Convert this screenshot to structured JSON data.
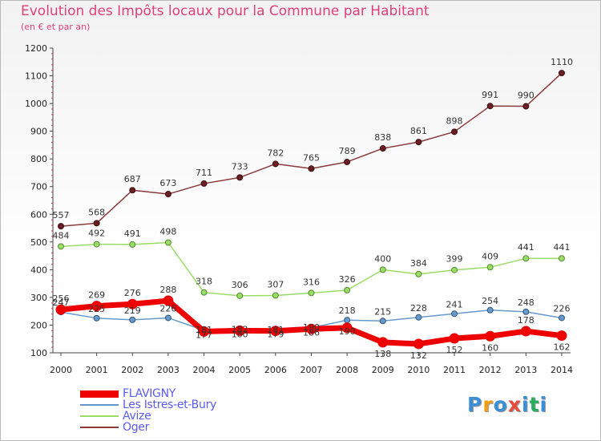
{
  "header": {
    "title": "Evolution des Impôts locaux pour la Commune par Habitant",
    "subtitle": "(en € et par an)"
  },
  "logo": {
    "text": "Proxiti",
    "letter_colors": [
      "#3a8fd6",
      "#f39c12",
      "#3a8fd6",
      "#e74c3c",
      "#3a8fd6",
      "#27ae60",
      "#3a8fd6"
    ]
  },
  "chart_data": {
    "type": "line",
    "title": "Evolution des Impôts locaux pour la Commune par Habitant",
    "subtitle": "(en € et par an)",
    "xlabel": "",
    "ylabel": "",
    "x": [
      2000,
      2001,
      2002,
      2003,
      2004,
      2005,
      2006,
      2007,
      2008,
      2009,
      2010,
      2011,
      2012,
      2013,
      2014
    ],
    "ylim": [
      100,
      1200
    ],
    "yticks": [
      100,
      200,
      300,
      400,
      500,
      600,
      700,
      800,
      900,
      1000,
      1100,
      1200
    ],
    "grid": false,
    "legend_position": "bottom-left",
    "series": [
      {
        "name": "FLAVIGNY",
        "color": "#ee0000",
        "values": [
          256,
          269,
          276,
          288,
          177,
          180,
          179,
          186,
          190,
          138,
          132,
          152,
          160,
          178,
          162
        ],
        "labels": [
          "256",
          "269",
          "276",
          "288",
          "177",
          "180",
          "179",
          "186",
          "190",
          "138",
          "132",
          "152",
          "160",
          "178",
          "162"
        ]
      },
      {
        "name": "Les Istres-et-Bury",
        "color": "#6699cc",
        "values": [
          247,
          225,
          219,
          226,
          181,
          182,
          181,
          190,
          218,
          215,
          228,
          241,
          254,
          248,
          226
        ],
        "labels": [
          "247",
          "225",
          "219",
          "226",
          "181",
          "182",
          "181",
          "190",
          "218",
          "215",
          "228",
          "241",
          "254",
          "248",
          "226"
        ]
      },
      {
        "name": "Avize",
        "color": "#99dd66",
        "values": [
          484,
          492,
          491,
          498,
          318,
          306,
          307,
          316,
          326,
          400,
          384,
          399,
          409,
          441,
          441
        ],
        "labels": [
          "484",
          "492",
          "491",
          "498",
          "318",
          "306",
          "307",
          "316",
          "326",
          "400",
          "384",
          "399",
          "409",
          "441",
          "441"
        ]
      },
      {
        "name": "Oger",
        "color": "#8b3a3a",
        "values": [
          557,
          568,
          687,
          673,
          711,
          733,
          782,
          765,
          789,
          838,
          861,
          898,
          991,
          990,
          1110
        ],
        "labels": [
          "557",
          "568",
          "687",
          "673",
          "711",
          "733",
          "782",
          "765",
          "789",
          "838",
          "861",
          "898",
          "991",
          "990",
          "1110"
        ]
      }
    ]
  }
}
